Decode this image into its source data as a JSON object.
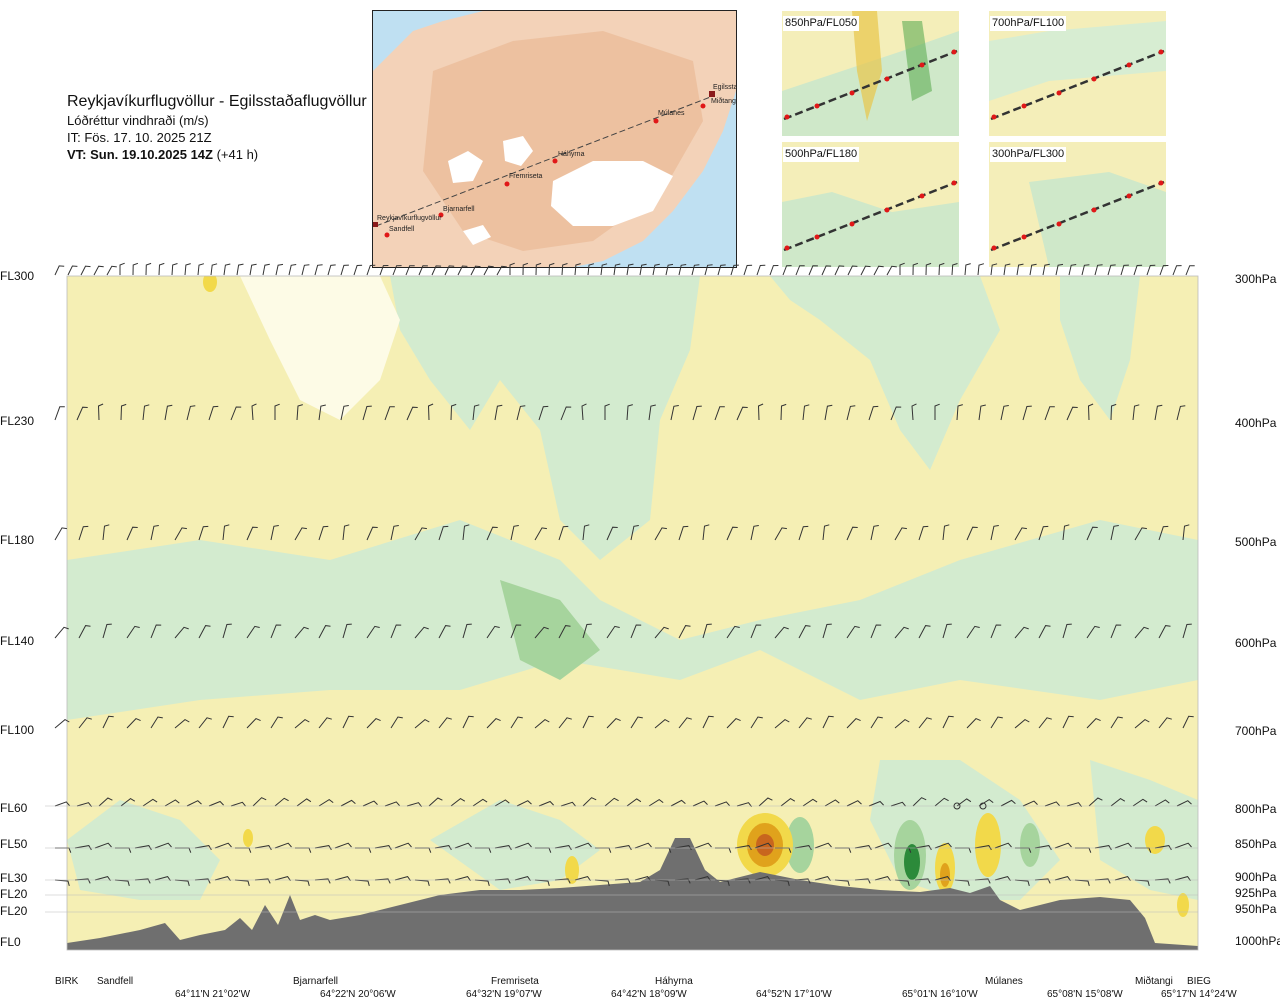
{
  "header": {
    "route": "Reykjavíkurflugvöllur - Egilsstaðaflugvöllur",
    "field": "Lóðréttur vindhraði (m/s)",
    "issue": "IT: Fös. 17. 10. 2025 21Z",
    "valid_bold": "VT: Sun. 19.10.2025 14Z",
    "valid_lead": " (+41 h)"
  },
  "map": {
    "waypoints": [
      "Reykjavíkurflugvöllur",
      "Sandfell",
      "Bjarnarfell",
      "Fremriseta",
      "Háhyrna",
      "Múlanes",
      "Miðtangi",
      "Egilsstaðir"
    ]
  },
  "mini_maps": [
    {
      "label": "850hPa/FL050"
    },
    {
      "label": "700hPa/FL100"
    },
    {
      "label": "500hPa/FL180"
    },
    {
      "label": "300hPa/FL300"
    }
  ],
  "axes": {
    "left_levels": [
      "FL300",
      "FL230",
      "FL180",
      "FL140",
      "FL100",
      "FL60",
      "FL50",
      "FL30",
      "FL20",
      "FL20",
      "FL0"
    ],
    "right_levels": [
      "300hPa",
      "400hPa",
      "500hPa",
      "600hPa",
      "700hPa",
      "800hPa",
      "850hPa",
      "900hPa",
      "925hPa",
      "950hPa",
      "1000hPa"
    ]
  },
  "stations": [
    "BIRK",
    "Sandfell",
    "Bjarnarfell",
    "Fremriseta",
    "Háhyrna",
    "Múlanes",
    "Miðtangi",
    "BIEG"
  ],
  "coordinates": [
    "64°11'N 21°02'W",
    "64°22'N 20°06'W",
    "64°32'N 19°07'W",
    "64°42'N 18°09'W",
    "64°52'N 17°10'W",
    "65°01'N 16°10'W",
    "65°08'N 15°08'W",
    "65°17'N 14°24'W"
  ],
  "colors": {
    "sink_weak": "#f5efb4",
    "sink_mid": "#f2d94a",
    "sink_strong": "#e0a21c",
    "sink_core": "#c8651e",
    "rise_weak": "#d3ebcf",
    "rise_mid": "#a6d49d",
    "rise_strong": "#5aa94f",
    "rise_core": "#2c8a3a",
    "terrain": "#6f6f6f",
    "neutral": "#fdfbe6"
  },
  "chart_data": {
    "type": "heatmap",
    "title": "Reykjavíkurflugvöllur - Egilsstaðaflugvöllur",
    "variable": "Lóðréttur vindhraði (m/s)",
    "x_stations": [
      "BIRK",
      "Sandfell",
      "Bjarnarfell",
      "Fremriseta",
      "Háhyrna",
      "Múlanes",
      "Miðtangi",
      "BIEG"
    ],
    "y_left_levels": [
      "FL0",
      "FL20",
      "FL20",
      "FL30",
      "FL50",
      "FL60",
      "FL100",
      "FL140",
      "FL180",
      "FL230",
      "FL300"
    ],
    "y_right_levels_hPa": [
      1000,
      950,
      925,
      900,
      850,
      800,
      700,
      600,
      500,
      400,
      300
    ],
    "legend": "none",
    "grid": false
  }
}
